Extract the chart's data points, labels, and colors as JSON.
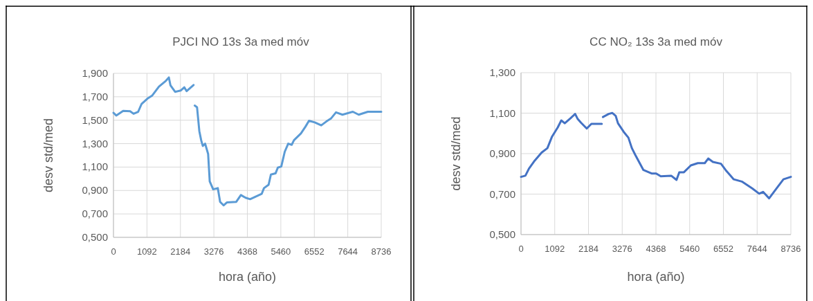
{
  "chart_data": [
    {
      "type": "line",
      "title": "PJCI NO 13s 3a med móv",
      "xlabel": "hora (año)",
      "ylabel": "desv std/med",
      "grid": true,
      "marker": "none",
      "line_style": "solid",
      "xlim": [
        0,
        8736
      ],
      "xticks": [
        0,
        1092,
        2184,
        3276,
        4368,
        5460,
        6552,
        7644,
        8736
      ],
      "ylim": [
        0.5,
        1.9
      ],
      "yticks": [
        {
          "value": 0.5,
          "label": "0,500"
        },
        {
          "value": 0.7,
          "label": "0,700"
        },
        {
          "value": 0.9,
          "label": "0,900"
        },
        {
          "value": 1.1,
          "label": "1,100"
        },
        {
          "value": 1.3,
          "label": "1,300"
        },
        {
          "value": 1.5,
          "label": "1,500"
        },
        {
          "value": 1.7,
          "label": "1,700"
        },
        {
          "value": 1.9,
          "label": "1,900"
        }
      ],
      "series": [
        {
          "color": "#5b9bd5",
          "x": [
            0,
            90,
            316,
            542,
            655,
            806,
            919,
            1107,
            1258,
            1484,
            1709,
            1807,
            1860,
            2011,
            2199,
            2312,
            2387,
            2613,
            2630,
            2651,
            2726,
            2801,
            2861,
            2914,
            2990,
            3088,
            3140,
            3253,
            3404,
            3479,
            3592,
            3705,
            4006,
            4157,
            4308,
            4458,
            4835,
            4910,
            5061,
            5136,
            5287,
            5362,
            5475,
            5588,
            5701,
            5814,
            5889,
            6115,
            6266,
            6379,
            6567,
            6778,
            6944,
            7094,
            7260,
            7471,
            7810,
            8001,
            8299,
            8736
          ],
          "values": [
            1.563,
            1.54,
            1.58,
            1.577,
            1.555,
            1.572,
            1.64,
            1.684,
            1.709,
            1.787,
            1.836,
            1.865,
            1.797,
            1.742,
            1.754,
            1.781,
            1.748,
            1.801,
            null,
            1.625,
            1.611,
            1.407,
            1.329,
            1.28,
            1.3,
            1.212,
            0.978,
            0.91,
            0.92,
            0.803,
            0.773,
            0.799,
            0.803,
            0.861,
            0.838,
            0.826,
            0.871,
            0.92,
            0.949,
            1.036,
            1.046,
            1.095,
            1.105,
            1.231,
            1.3,
            1.29,
            1.329,
            1.387,
            1.446,
            1.495,
            1.481,
            1.456,
            1.489,
            1.514,
            1.567,
            1.547,
            1.572,
            1.547,
            1.572,
            1.572
          ]
        }
      ]
    },
    {
      "type": "line",
      "title": "CC NO₂ 13s 3a med móv",
      "xlabel": "hora (año)",
      "ylabel": "desv std/med",
      "grid": true,
      "marker": "none",
      "line_style": "solid",
      "xlim": [
        0,
        8736
      ],
      "xticks": [
        0,
        1092,
        2184,
        3276,
        4368,
        5460,
        6552,
        7644,
        8736
      ],
      "ylim": [
        0.5,
        1.3
      ],
      "yticks": [
        {
          "value": 0.5,
          "label": "0,500"
        },
        {
          "value": 0.7,
          "label": "0,700"
        },
        {
          "value": 0.9,
          "label": "0,900"
        },
        {
          "value": 1.1,
          "label": "1,100"
        },
        {
          "value": 1.3,
          "label": "1,300"
        }
      ],
      "series": [
        {
          "color": "#4472c4",
          "x": [
            0,
            142,
            255,
            442,
            667,
            854,
            1004,
            1191,
            1304,
            1416,
            1603,
            1753,
            1828,
            1941,
            2128,
            2278,
            2615,
            2632,
            2652,
            2840,
            2952,
            3064,
            3139,
            3327,
            3476,
            3589,
            3701,
            3963,
            4226,
            4375,
            4525,
            4862,
            5034,
            5124,
            5274,
            5499,
            5724,
            5949,
            6061,
            6211,
            6474,
            6624,
            6886,
            7148,
            7485,
            7710,
            7837,
            8032,
            8271,
            8496,
            8736
          ],
          "values": [
            0.785,
            0.791,
            0.825,
            0.865,
            0.905,
            0.927,
            0.984,
            1.03,
            1.064,
            1.05,
            1.075,
            1.096,
            1.073,
            1.053,
            1.024,
            1.047,
            1.047,
            null,
            1.081,
            1.096,
            1.101,
            1.087,
            1.05,
            1.007,
            0.979,
            0.927,
            0.893,
            0.819,
            0.802,
            0.802,
            0.788,
            0.791,
            0.77,
            0.808,
            0.808,
            0.842,
            0.853,
            0.853,
            0.876,
            0.859,
            0.85,
            0.819,
            0.773,
            0.762,
            0.728,
            0.702,
            0.711,
            0.679,
            0.728,
            0.773,
            0.785
          ]
        }
      ]
    }
  ]
}
